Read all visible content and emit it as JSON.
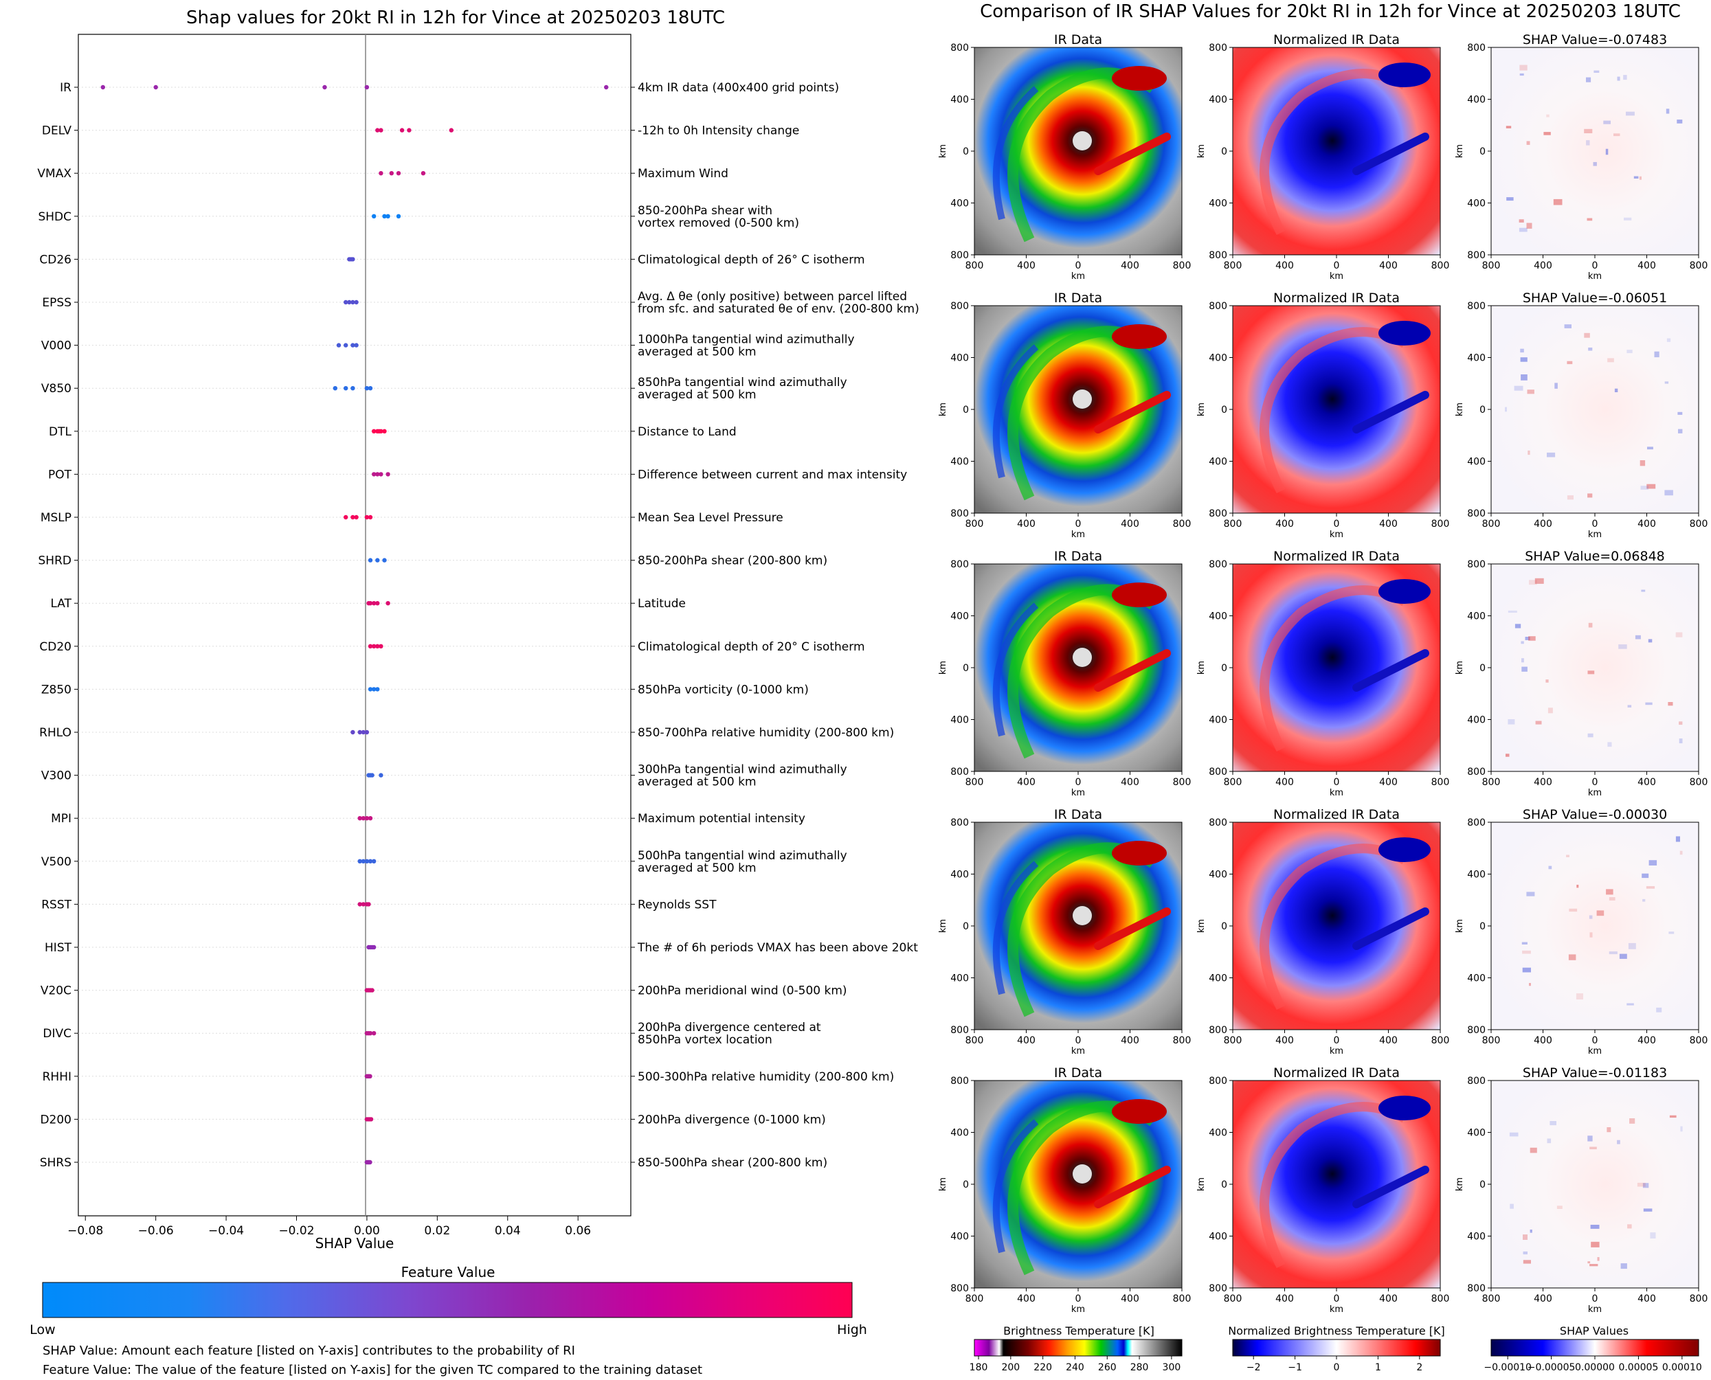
{
  "left_panel": {
    "title": "Shap values for 20kt RI in 12h for Vince at 20250203 18UTC",
    "xlabel": "SHAP Value",
    "colorbar_title": "Feature Value",
    "colorbar_low": "Low",
    "colorbar_high": "High",
    "note1": "SHAP Value: Amount each feature [listed on Y-axis] contributes to the probability of RI",
    "note2": "Feature Value: The value of the feature [listed on Y-axis] for the given TC compared to the training dataset"
  },
  "right_panel": {
    "title": "Comparison of IR SHAP Values for 20kt RI in 12h for Vince at 20250203 18UTC",
    "col_titles": [
      "IR Data",
      "Normalized IR Data"
    ],
    "shap_titles": [
      "SHAP Value=-0.07483",
      "SHAP Value=-0.06051",
      "SHAP Value=0.06848",
      "SHAP Value=-0.00030",
      "SHAP Value=-0.01183"
    ],
    "axis_label": "km",
    "ticks": [
      "800",
      "400",
      "0",
      "400",
      "800"
    ],
    "cb1": {
      "title": "Brightness Temperature [K]",
      "ticks": [
        "180",
        "200",
        "220",
        "240",
        "260",
        "280",
        "300"
      ]
    },
    "cb2": {
      "title": "Normalized Brightness Temperature [K]",
      "ticks": [
        "−2",
        "−1",
        "0",
        "1",
        "2"
      ]
    },
    "cb3": {
      "title": "SHAP Values",
      "ticks": [
        "−0.00010",
        "−0.00005",
        "0.00000",
        "0.00005",
        "0.00010"
      ]
    }
  },
  "colors": {
    "low": "#008bfb",
    "mid": "#8f2bb5",
    "high": "#ff0052"
  },
  "chart_data": {
    "type": "scatter",
    "title": "Shap values for 20kt RI in 12h for Vince at 20250203 18UTC",
    "xlabel": "SHAP Value",
    "xlim": [
      -0.082,
      0.075
    ],
    "xticks": [
      -0.08,
      -0.06,
      -0.04,
      -0.02,
      0.0,
      0.02,
      0.04,
      0.06
    ],
    "xtick_labels": [
      "−0.08",
      "−0.06",
      "−0.04",
      "−0.02",
      "0.00",
      "0.02",
      "0.04",
      "0.06"
    ],
    "features": [
      {
        "name": "IR",
        "desc": [
          "4km IR data (400x400 grid points)"
        ],
        "points": [
          [
            -0.075,
            0.55
          ],
          [
            -0.06,
            0.55
          ],
          [
            -0.012,
            0.55
          ],
          [
            0.0,
            0.55
          ],
          [
            0.068,
            0.55
          ]
        ]
      },
      {
        "name": "DELV",
        "desc": [
          "-12h to 0h Intensity change"
        ],
        "points": [
          [
            0.003,
            0.85
          ],
          [
            0.004,
            0.85
          ],
          [
            0.01,
            0.85
          ],
          [
            0.012,
            0.85
          ],
          [
            0.024,
            0.85
          ]
        ]
      },
      {
        "name": "VMAX",
        "desc": [
          "Maximum Wind"
        ],
        "points": [
          [
            0.004,
            0.75
          ],
          [
            0.007,
            0.75
          ],
          [
            0.009,
            0.75
          ],
          [
            0.016,
            0.75
          ]
        ]
      },
      {
        "name": "SHDC",
        "desc": [
          "850-200hPa shear with",
          "vortex removed (0-500 km)"
        ],
        "points": [
          [
            0.002,
            0.05
          ],
          [
            0.005,
            0.05
          ],
          [
            0.006,
            0.05
          ],
          [
            0.009,
            0.05
          ]
        ]
      },
      {
        "name": "CD26",
        "desc": [
          "Climatological depth of 26° C isotherm"
        ],
        "points": [
          [
            -0.005,
            0.3
          ],
          [
            -0.0045,
            0.3
          ],
          [
            -0.004,
            0.3
          ]
        ]
      },
      {
        "name": "EPSS",
        "desc": [
          "Avg. Δ θe (only positive) between parcel lifted",
          "from sfc. and saturated θe of env. (200-800 km)"
        ],
        "points": [
          [
            -0.006,
            0.3
          ],
          [
            -0.005,
            0.3
          ],
          [
            -0.004,
            0.3
          ],
          [
            -0.003,
            0.3
          ]
        ]
      },
      {
        "name": "V000",
        "desc": [
          "1000hPa tangential wind azimuthally",
          "averaged at 500 km"
        ],
        "points": [
          [
            -0.008,
            0.25
          ],
          [
            -0.006,
            0.25
          ],
          [
            -0.004,
            0.25
          ],
          [
            -0.003,
            0.25
          ]
        ]
      },
      {
        "name": "V850",
        "desc": [
          "850hPa tangential wind azimuthally",
          "averaged at 500 km"
        ],
        "points": [
          [
            -0.009,
            0.15
          ],
          [
            -0.006,
            0.15
          ],
          [
            -0.004,
            0.15
          ],
          [
            0.0,
            0.15
          ],
          [
            0.001,
            0.15
          ]
        ]
      },
      {
        "name": "DTL",
        "desc": [
          "Distance to Land"
        ],
        "points": [
          [
            0.002,
            1.0
          ],
          [
            0.003,
            1.0
          ],
          [
            0.0035,
            1.0
          ],
          [
            0.004,
            1.0
          ],
          [
            0.005,
            1.0
          ]
        ]
      },
      {
        "name": "POT",
        "desc": [
          "Difference between current and max intensity"
        ],
        "points": [
          [
            0.002,
            0.7
          ],
          [
            0.003,
            0.7
          ],
          [
            0.004,
            0.7
          ],
          [
            0.006,
            0.7
          ]
        ]
      },
      {
        "name": "MSLP",
        "desc": [
          "Mean Sea Level Pressure"
        ],
        "points": [
          [
            -0.006,
            0.95
          ],
          [
            -0.004,
            0.95
          ],
          [
            -0.003,
            0.95
          ],
          [
            0.0,
            0.95
          ],
          [
            0.001,
            0.95
          ]
        ]
      },
      {
        "name": "SHRD",
        "desc": [
          "850-200hPa shear (200-800 km)"
        ],
        "points": [
          [
            0.001,
            0.15
          ],
          [
            0.003,
            0.15
          ],
          [
            0.005,
            0.15
          ]
        ]
      },
      {
        "name": "LAT",
        "desc": [
          "Latitude"
        ],
        "points": [
          [
            0.0005,
            0.85
          ],
          [
            0.001,
            0.85
          ],
          [
            0.002,
            0.85
          ],
          [
            0.003,
            0.85
          ],
          [
            0.006,
            0.85
          ]
        ]
      },
      {
        "name": "CD20",
        "desc": [
          "Climatological depth of 20° C isotherm"
        ],
        "points": [
          [
            0.001,
            0.9
          ],
          [
            0.002,
            0.9
          ],
          [
            0.003,
            0.9
          ],
          [
            0.004,
            0.9
          ]
        ]
      },
      {
        "name": "Z850",
        "desc": [
          "850hPa vorticity (0-1000 km)"
        ],
        "points": [
          [
            0.001,
            0.1
          ],
          [
            0.002,
            0.1
          ],
          [
            0.003,
            0.1
          ]
        ]
      },
      {
        "name": "RHLO",
        "desc": [
          "850-700hPa relative humidity (200-800 km)"
        ],
        "points": [
          [
            -0.004,
            0.35
          ],
          [
            -0.002,
            0.35
          ],
          [
            -0.001,
            0.35
          ],
          [
            0.0,
            0.35
          ]
        ]
      },
      {
        "name": "V300",
        "desc": [
          "300hPa tangential wind azimuthally",
          "averaged at 500 km"
        ],
        "points": [
          [
            0.0005,
            0.2
          ],
          [
            0.001,
            0.2
          ],
          [
            0.0015,
            0.2
          ],
          [
            0.004,
            0.2
          ]
        ]
      },
      {
        "name": "MPI",
        "desc": [
          "Maximum potential intensity"
        ],
        "points": [
          [
            -0.002,
            0.75
          ],
          [
            -0.001,
            0.75
          ],
          [
            0.0,
            0.75
          ],
          [
            0.001,
            0.75
          ]
        ]
      },
      {
        "name": "V500",
        "desc": [
          "500hPa tangential wind azimuthally",
          "averaged at 500 km"
        ],
        "points": [
          [
            -0.002,
            0.2
          ],
          [
            -0.001,
            0.2
          ],
          [
            0.0,
            0.2
          ],
          [
            0.001,
            0.2
          ],
          [
            0.002,
            0.2
          ]
        ]
      },
      {
        "name": "RSST",
        "desc": [
          "Reynolds SST"
        ],
        "points": [
          [
            -0.002,
            0.8
          ],
          [
            -0.001,
            0.8
          ],
          [
            0.0,
            0.8
          ],
          [
            0.0005,
            0.8
          ]
        ]
      },
      {
        "name": "HIST",
        "desc": [
          "The # of 6h periods VMAX has been above 20kt"
        ],
        "points": [
          [
            0.0005,
            0.5
          ],
          [
            0.001,
            0.5
          ],
          [
            0.0015,
            0.5
          ],
          [
            0.002,
            0.5
          ]
        ]
      },
      {
        "name": "V20C",
        "desc": [
          "200hPa meridional wind (0-500 km)"
        ],
        "points": [
          [
            0.0,
            0.8
          ],
          [
            0.0005,
            0.8
          ],
          [
            0.001,
            0.8
          ],
          [
            0.0015,
            0.8
          ]
        ]
      },
      {
        "name": "DIVC",
        "desc": [
          "200hPa divergence centered at",
          "850hPa vortex location"
        ],
        "points": [
          [
            0.0,
            0.7
          ],
          [
            0.0005,
            0.7
          ],
          [
            0.001,
            0.7
          ],
          [
            0.002,
            0.7
          ]
        ]
      },
      {
        "name": "RHHI",
        "desc": [
          "500-300hPa relative humidity (200-800 km)"
        ],
        "points": [
          [
            0.0,
            0.65
          ],
          [
            0.0003,
            0.65
          ],
          [
            0.0006,
            0.65
          ],
          [
            0.0009,
            0.65
          ]
        ]
      },
      {
        "name": "D200",
        "desc": [
          "200hPa divergence (0-1000 km)"
        ],
        "points": [
          [
            0.0,
            0.8
          ],
          [
            0.0004,
            0.8
          ],
          [
            0.0008,
            0.8
          ],
          [
            0.0012,
            0.8
          ]
        ]
      },
      {
        "name": "SHRS",
        "desc": [
          "850-500hPa shear (200-800 km)"
        ],
        "points": [
          [
            0.0,
            0.55
          ],
          [
            0.0003,
            0.55
          ],
          [
            0.0006,
            0.55
          ],
          [
            0.0009,
            0.55
          ]
        ]
      }
    ]
  }
}
